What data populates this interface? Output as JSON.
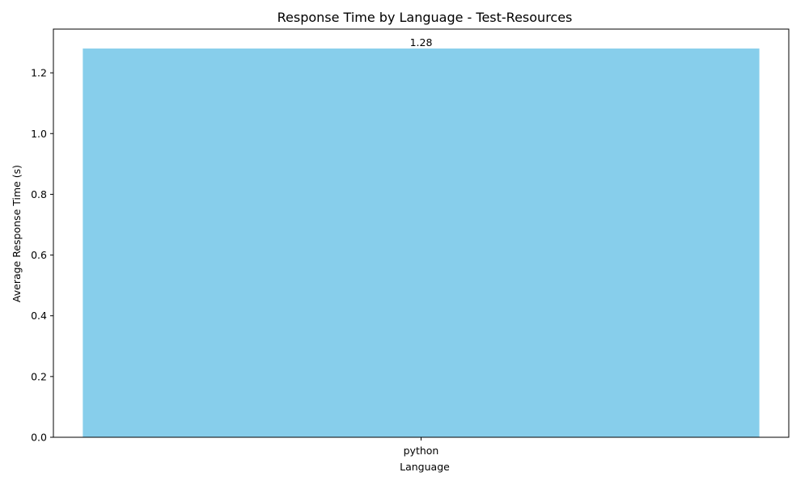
{
  "chart_data": {
    "type": "bar",
    "title": "Response Time by Language - Test-Resources",
    "xlabel": "Language",
    "ylabel": "Average Response Time (s)",
    "categories": [
      "python"
    ],
    "values": [
      1.28
    ],
    "data_labels": [
      "1.28"
    ],
    "ylim": [
      0,
      1.344
    ],
    "yticks": [
      0.0,
      0.2,
      0.4,
      0.6,
      0.8,
      1.0,
      1.2
    ],
    "ytick_labels": [
      "0.0",
      "0.2",
      "0.4",
      "0.6",
      "0.8",
      "1.0",
      "1.2"
    ],
    "grid": false,
    "legend": "none",
    "colors": {
      "bar": "#87ceeb",
      "axes": "#000000",
      "background": "#ffffff"
    }
  }
}
